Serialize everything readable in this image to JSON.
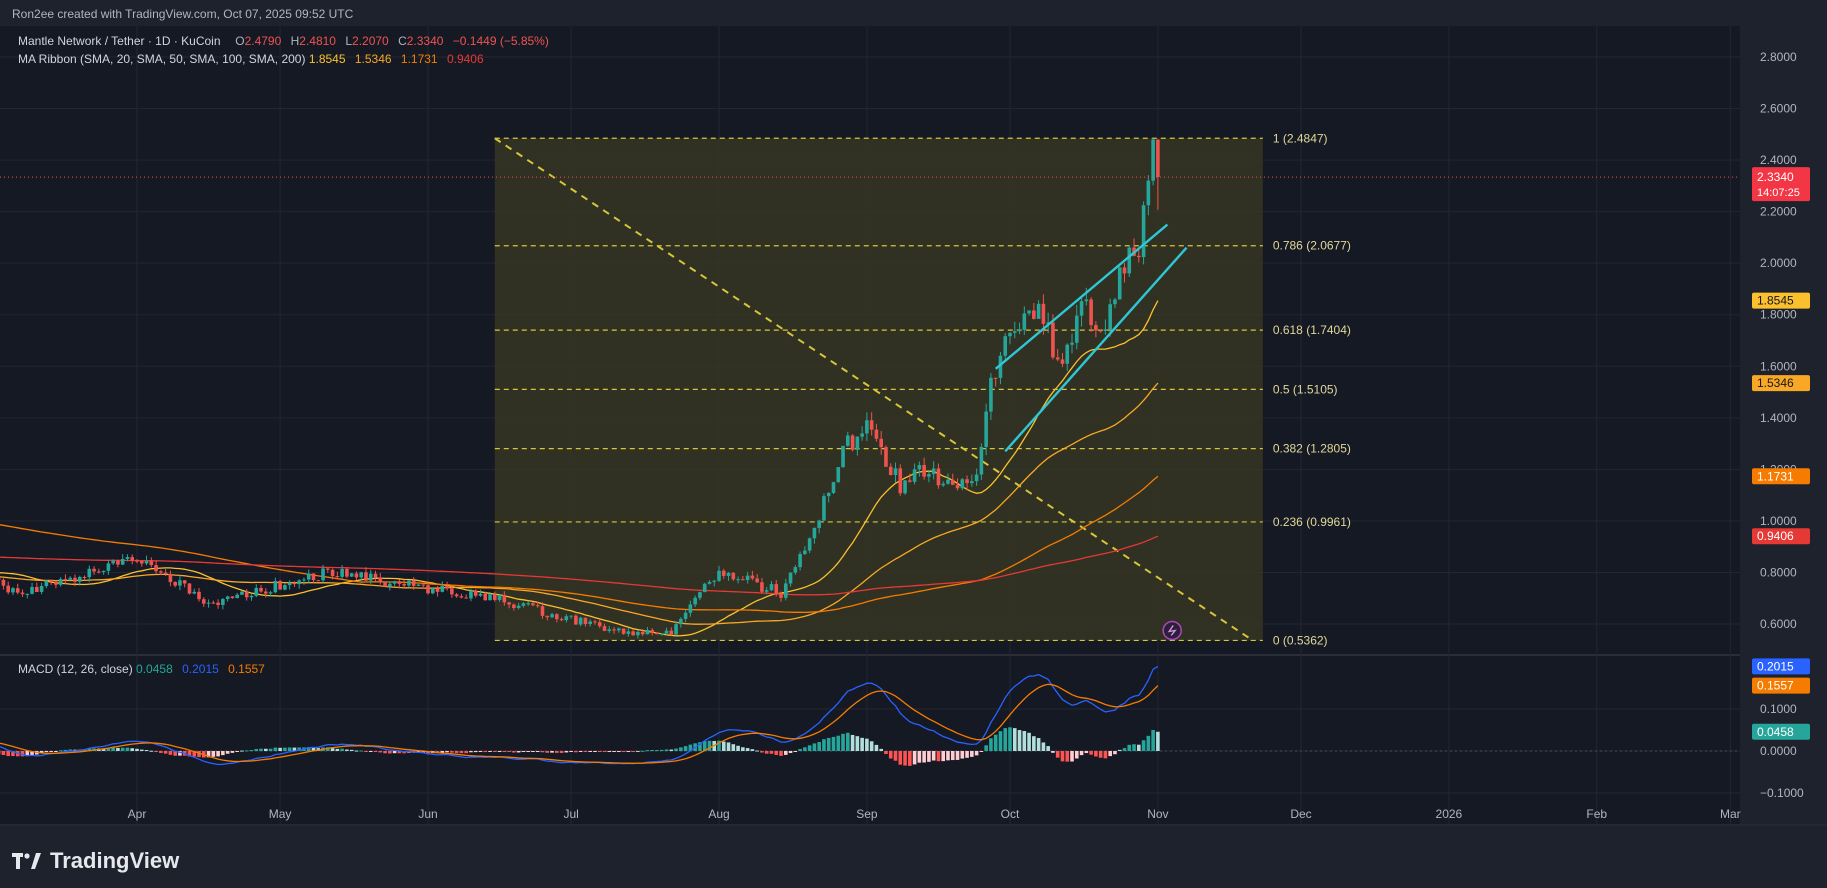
{
  "credit": "Ron2ee created with TradingView.com, Oct 07, 2025 09:52 UTC",
  "brand": "TradingView",
  "colors": {
    "background": "#1e222d",
    "up": "#26a69a",
    "down": "#ef5350",
    "ma20": "#fbc02d",
    "ma50": "#f9a825",
    "ma100": "#f57c00",
    "ma200": "#e53935",
    "fib_line": "#d7c53a",
    "fib_zone": "#4a4a2a",
    "trendline": "#2ec7d6",
    "macd_line": "#2962ff",
    "signal_line": "#f57c00"
  },
  "symbol": {
    "name": "Mantle Network / Tether · 1D · KuCoin",
    "open_label": "O",
    "open": "2.4790",
    "high_label": "H",
    "high": "2.4810",
    "low_label": "L",
    "low": "2.2070",
    "close_label": "C",
    "close": "2.3340",
    "change": "−0.1449 (−5.85%)"
  },
  "ma_ribbon": {
    "label": "MA Ribbon (SMA, 20, SMA, 50, SMA, 100, SMA, 200)",
    "v20": "1.8545",
    "v50": "1.5346",
    "v100": "1.1731",
    "v200": "0.9406"
  },
  "macd": {
    "label": "MACD (12, 26, close)",
    "hist": "0.0458",
    "macd": "0.2015",
    "signal": "0.1557"
  },
  "price_tag": {
    "price": "2.3340",
    "countdown": "14:07:25"
  },
  "chart_data": {
    "type": "candlestick",
    "price_axis": {
      "ticks": [
        "2.8000",
        "2.6000",
        "2.4000",
        "2.2000",
        "2.0000",
        "1.8000",
        "1.6000",
        "1.4000",
        "1.2000",
        "1.0000",
        "0.8000",
        "0.6000"
      ],
      "range": [
        0.5,
        2.88
      ]
    },
    "macd_axis": {
      "ticks": [
        "0.1000",
        "0.0000",
        "−0.1000"
      ],
      "range": [
        -0.14,
        0.33
      ]
    },
    "time_axis": [
      "Apr",
      "May",
      "Jun",
      "Jul",
      "Aug",
      "Sep",
      "Oct",
      "Nov",
      "Dec",
      "2026",
      "Feb",
      "Mar"
    ],
    "ma_values": [
      {
        "name": "SMA 20",
        "value": 1.8545
      },
      {
        "name": "SMA 50",
        "value": 1.5346
      },
      {
        "name": "SMA 100",
        "value": 1.1731
      },
      {
        "name": "SMA 200",
        "value": 0.9406
      }
    ],
    "fibonacci": [
      {
        "ratio": 1,
        "value": 2.4847,
        "label": "1 (2.4847)"
      },
      {
        "ratio": 0.786,
        "value": 2.0677,
        "label": "0.786 (2.0677)"
      },
      {
        "ratio": 0.618,
        "value": 1.7404,
        "label": "0.618 (1.7404)"
      },
      {
        "ratio": 0.5,
        "value": 1.5105,
        "label": "0.5 (1.5105)"
      },
      {
        "ratio": 0.382,
        "value": 1.2805,
        "label": "0.382 (1.2805)"
      },
      {
        "ratio": 0.236,
        "value": 0.9961,
        "label": "0.236 (0.9961)"
      },
      {
        "ratio": 0,
        "value": 0.5362,
        "label": "0 (0.5362)"
      }
    ],
    "last_price": 2.334,
    "macd_values": {
      "histogram": 0.0458,
      "macd": 0.2015,
      "signal": 0.1557
    }
  }
}
